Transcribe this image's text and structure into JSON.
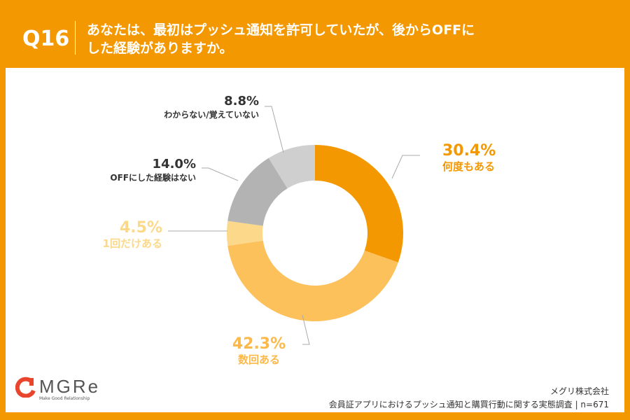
{
  "header": {
    "question_no": "Q16",
    "title_line1": "あなたは、最初はプッシュ通知を許可していたが、後からOFFに",
    "title_line2": "した経験がありますか。"
  },
  "chart_data": {
    "type": "pie",
    "donut": true,
    "categories": [
      "何度もある",
      "数回ある",
      "1回だけある",
      "OFFにした経験はない",
      "わからない/覚えていない"
    ],
    "values": [
      30.4,
      42.3,
      4.5,
      14.0,
      8.8
    ],
    "labels": [
      "30.4%",
      "42.3%",
      "4.5%",
      "14.0%",
      "8.8%"
    ],
    "colors": [
      "#f39800",
      "#fdc15c",
      "#fcd98a",
      "#b3b3b3",
      "#cfcfcf"
    ],
    "label_colors": [
      "#f39800",
      "#fcb94a",
      "#fcd98a",
      "#333333",
      "#333333"
    ]
  },
  "footer": {
    "logo": "MGRe",
    "logo_tagline": "Make Good Relationship",
    "company": "メグリ株式会社",
    "source": "会員証アプリにおけるプッシュ通知と購買行動に関する実態調査 | n=671"
  },
  "colors": {
    "brand": "#f39800",
    "logo_red": "#e8452c"
  }
}
